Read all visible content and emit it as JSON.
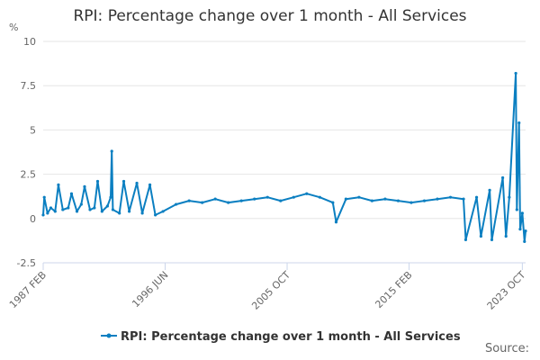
{
  "colors": {
    "series": "#0b7fc1",
    "grid": "#e6e6e6",
    "axis": "#ccd6eb"
  },
  "chart_data": {
    "type": "line",
    "title": "RPI: Percentage change over 1 month - All Services",
    "ylabel": "%",
    "xlabel": "",
    "ylim": [
      -2.5,
      10
    ],
    "yticks": [
      -2.5,
      0,
      2.5,
      5,
      7.5,
      10
    ],
    "ytick_labels": [
      "-2.5",
      "0",
      "2.5",
      "5",
      "7.5",
      "10"
    ],
    "x_range": [
      "1987 FEB",
      "2024 JAN"
    ],
    "xticks": [
      {
        "date": "1987 FEB",
        "label": "1987 FEB"
      },
      {
        "date": "1996 JUN",
        "label": "1996 JUN"
      },
      {
        "date": "2005 OCT",
        "label": "2005 OCT"
      },
      {
        "date": "2015 FEB",
        "label": "2015 FEB"
      },
      {
        "date": "2023 OCT",
        "label": "2023 OCT"
      }
    ],
    "grid": true,
    "legend": "bottom",
    "series": [
      {
        "name": "RPI: Percentage change over 1 month - All Services",
        "points": [
          [
            "1987 FEB",
            0.2
          ],
          [
            "1987 MAR",
            1.2
          ],
          [
            "1987 JUN",
            0.3
          ],
          [
            "1987 SEP",
            0.6
          ],
          [
            "1988 JAN",
            0.4
          ],
          [
            "1988 APR",
            1.9
          ],
          [
            "1988 AUG",
            0.5
          ],
          [
            "1989 JAN",
            0.6
          ],
          [
            "1989 APR",
            1.4
          ],
          [
            "1989 SEP",
            0.4
          ],
          [
            "1990 JAN",
            0.8
          ],
          [
            "1990 APR",
            1.8
          ],
          [
            "1990 SEP",
            0.5
          ],
          [
            "1991 JAN",
            0.6
          ],
          [
            "1991 APR",
            2.1
          ],
          [
            "1991 AUG",
            0.4
          ],
          [
            "1992 JAN",
            0.7
          ],
          [
            "1992 APR",
            1.2
          ],
          [
            "1992 MAY",
            3.8
          ],
          [
            "1992 JUN",
            0.5
          ],
          [
            "1992 DEC",
            0.3
          ],
          [
            "1993 APR",
            2.1
          ],
          [
            "1993 SEP",
            0.4
          ],
          [
            "1994 APR",
            2.0
          ],
          [
            "1994 SEP",
            0.3
          ],
          [
            "1995 APR",
            1.9
          ],
          [
            "1995 SEP",
            0.2
          ],
          [
            "1996 APR",
            0.4
          ],
          [
            "1997 APR",
            0.8
          ],
          [
            "1998 APR",
            1.0
          ],
          [
            "1999 APR",
            0.9
          ],
          [
            "2000 APR",
            1.1
          ],
          [
            "2001 APR",
            0.9
          ],
          [
            "2002 APR",
            1.0
          ],
          [
            "2003 APR",
            1.1
          ],
          [
            "2004 APR",
            1.2
          ],
          [
            "2005 APR",
            1.0
          ],
          [
            "2006 APR",
            1.2
          ],
          [
            "2007 APR",
            1.4
          ],
          [
            "2008 APR",
            1.2
          ],
          [
            "2009 APR",
            0.9
          ],
          [
            "2009 JUL",
            -0.2
          ],
          [
            "2010 APR",
            1.1
          ],
          [
            "2011 APR",
            1.2
          ],
          [
            "2012 APR",
            1.0
          ],
          [
            "2013 APR",
            1.1
          ],
          [
            "2014 APR",
            1.0
          ],
          [
            "2015 APR",
            0.9
          ],
          [
            "2016 APR",
            1.0
          ],
          [
            "2017 APR",
            1.1
          ],
          [
            "2018 APR",
            1.2
          ],
          [
            "2019 APR",
            1.1
          ],
          [
            "2019 JUN",
            -1.2
          ],
          [
            "2020 APR",
            1.2
          ],
          [
            "2020 AUG",
            -1.0
          ],
          [
            "2021 APR",
            1.6
          ],
          [
            "2021 JUN",
            -1.2
          ],
          [
            "2022 APR",
            2.3
          ],
          [
            "2022 JUL",
            -1.0
          ],
          [
            "2022 OCT",
            1.2
          ],
          [
            "2023 APR",
            8.2
          ],
          [
            "2023 MAY",
            0.5
          ],
          [
            "2023 JUL",
            5.4
          ],
          [
            "2023 AUG",
            -0.6
          ],
          [
            "2023 OCT",
            0.3
          ],
          [
            "2023 DEC",
            -1.3
          ],
          [
            "2024 JAN",
            -0.7
          ]
        ]
      }
    ]
  },
  "legend": {
    "label": "RPI: Percentage change over 1 month - All Services"
  },
  "source_label": "Source:"
}
